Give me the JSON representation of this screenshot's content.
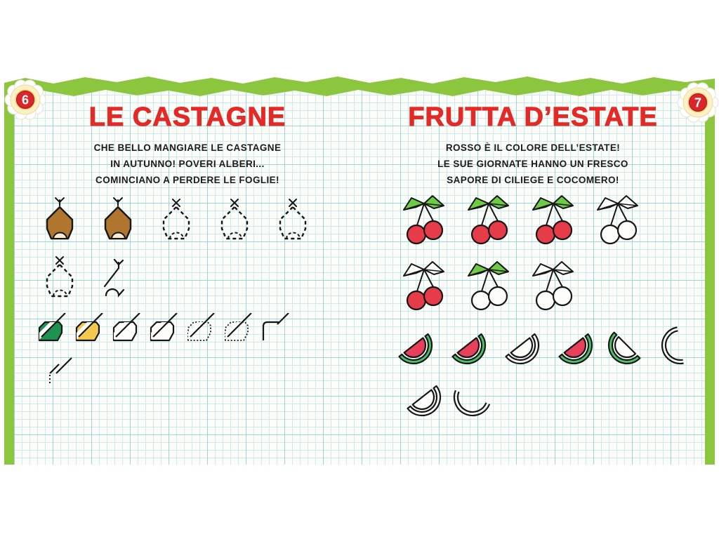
{
  "pages": {
    "left": {
      "number": "6",
      "title": "LE CASTAGNE",
      "lines": [
        "CHE BELLO MANGIARE LE CASTAGNE",
        "IN AUTUNNO! POVERI ALBERI...",
        "COMINCIANO A PERDERE LE FOGLIE!"
      ]
    },
    "right": {
      "number": "7",
      "title": "FRUTTA D’ESTATE",
      "lines": [
        "ROSSO È IL COLORE DELL’ESTATE!",
        "LE SUE GIORNATE HANNO UN FRESCO",
        "SAPORE DI CILIEGE E COCOMERO!"
      ]
    }
  },
  "figures": {
    "chestnut_row1": [
      "filled",
      "filled",
      "dashed",
      "dashed",
      "dashed"
    ],
    "chestnut_row2": [
      "dashed",
      "partial"
    ],
    "leaf_row1": [
      "green",
      "yellow",
      "outline",
      "outline",
      "dotted",
      "dotted",
      "corner"
    ],
    "leaf_row2": [
      "start"
    ],
    "cherry_row1": [
      "full",
      "full",
      "full",
      "outline"
    ],
    "cherry_row2": [
      "red-fruit",
      "green-leaves",
      "outline"
    ],
    "melon_row1": [
      "full",
      "full",
      "outline",
      "full",
      "rind",
      "arcs"
    ],
    "melon_row2": [
      "outline",
      "arcs"
    ]
  },
  "colors": {
    "frame_green": "#8cc63f",
    "title_red": "#e42a26",
    "text_black": "#1c1c1c",
    "chestnut_brown": "#b0762f",
    "chestnut_base": "#f7ecd2",
    "leaf_green": "#1f9150",
    "leaf_yellow": "#f2c94e",
    "cherry_leaf_green": "#6ecb45",
    "cherry_red": "#e63b49",
    "melon_red": "#e8405a",
    "melon_rind_green": "#4fc168",
    "badge_red": "#d8262c",
    "badge_ring_cream": "#fbf0c6",
    "badge_ring_gold": "#f0d071"
  }
}
